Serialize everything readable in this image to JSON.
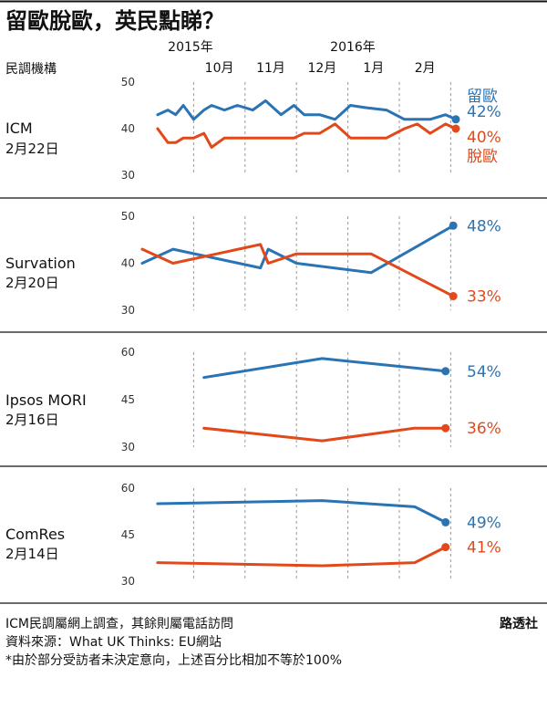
{
  "title": "留歐脫歐，英民點睇？",
  "column_header": "民調機構",
  "timeline": {
    "year_2015": "2015年",
    "year_2016": "2016年",
    "months": [
      "10月",
      "11月",
      "12月",
      "1月",
      "2月"
    ]
  },
  "colors": {
    "remain": "#2a73b4",
    "leave": "#e2481a",
    "grid": "#999999",
    "tick": "#555555"
  },
  "legend": {
    "remain": "留歐",
    "leave": "脫歐"
  },
  "footnotes": [
    "ICM民調屬網上調查，其餘則屬電話訪問",
    "資料來源：What UK Thinks: EU網站",
    "*由於部分受訪者未決定意向，上述百分比相加不等於100%"
  ],
  "credit": "路透社",
  "chart_data": [
    {
      "type": "line",
      "pollster": "ICM",
      "date": "2月22日",
      "ylim": [
        30,
        50
      ],
      "yticks": [
        "50",
        "40",
        "30"
      ],
      "x_unit": "months since 1 Oct 2015",
      "series": [
        {
          "name": "留歐",
          "final_label": "42%",
          "x": [
            -0.7,
            -0.5,
            -0.35,
            -0.2,
            0,
            0.2,
            0.35,
            0.6,
            0.85,
            1.15,
            1.4,
            1.7,
            1.95,
            2.15,
            2.45,
            2.75,
            3.05,
            3.35,
            3.75,
            4.1,
            4.35,
            4.6,
            4.9,
            5.1
          ],
          "values": [
            43,
            44,
            43,
            45,
            42,
            44,
            45,
            44,
            45,
            44,
            46,
            43,
            45,
            43,
            43,
            42,
            45,
            44.5,
            44,
            42,
            42,
            42,
            43,
            42
          ]
        },
        {
          "name": "脫歐",
          "final_label": "40%",
          "x": [
            -0.7,
            -0.5,
            -0.35,
            -0.2,
            0,
            0.2,
            0.35,
            0.6,
            0.85,
            1.15,
            1.4,
            1.7,
            1.95,
            2.15,
            2.45,
            2.75,
            3.05,
            3.35,
            3.75,
            4.1,
            4.35,
            4.6,
            4.9,
            5.1
          ],
          "values": [
            40,
            37,
            37,
            38,
            38,
            39,
            36,
            38,
            38,
            38,
            38,
            38,
            38,
            39,
            39,
            41,
            38,
            38,
            38,
            40,
            41,
            39,
            41,
            40
          ]
        }
      ]
    },
    {
      "type": "line",
      "pollster": "Survation",
      "date": "2月20日",
      "ylim": [
        30,
        50
      ],
      "yticks": [
        "50",
        "40",
        "30"
      ],
      "x_unit": "months since 1 Oct 2015",
      "series": [
        {
          "name": "留歐",
          "final_label": "48%",
          "x": [
            -1.0,
            -0.4,
            1.3,
            1.45,
            2.0,
            3.45,
            5.05
          ],
          "values": [
            40,
            43,
            39,
            43,
            40,
            38,
            48
          ]
        },
        {
          "name": "脫歐",
          "final_label": "33%",
          "x": [
            -1.0,
            -0.4,
            1.3,
            1.45,
            2.0,
            3.45,
            5.05
          ],
          "values": [
            43,
            40,
            44,
            40,
            42,
            42,
            33
          ]
        }
      ]
    },
    {
      "type": "line",
      "pollster": "Ipsos MORI",
      "date": "2月16日",
      "ylim": [
        30,
        60
      ],
      "yticks": [
        "60",
        "45",
        "30"
      ],
      "x_unit": "months since 1 Oct 2015",
      "series": [
        {
          "name": "留歐",
          "final_label": "54%",
          "x": [
            0.2,
            2.5,
            4.3,
            4.9
          ],
          "values": [
            52,
            58,
            55,
            54
          ]
        },
        {
          "name": "脫歐",
          "final_label": "36%",
          "x": [
            0.2,
            2.5,
            4.3,
            4.9
          ],
          "values": [
            36,
            32,
            36,
            36
          ]
        }
      ]
    },
    {
      "type": "line",
      "pollster": "ComRes",
      "date": "2月14日",
      "ylim": [
        30,
        60
      ],
      "yticks": [
        "60",
        "45",
        "30"
      ],
      "x_unit": "months since 1 Oct 2015",
      "series": [
        {
          "name": "留歐",
          "final_label": "49%",
          "x": [
            -0.7,
            2.5,
            4.3,
            4.9
          ],
          "values": [
            55,
            56,
            54,
            49
          ]
        },
        {
          "name": "脫歐",
          "final_label": "41%",
          "x": [
            -0.7,
            2.5,
            4.3,
            4.9
          ],
          "values": [
            36,
            35,
            36,
            41
          ]
        }
      ]
    }
  ]
}
